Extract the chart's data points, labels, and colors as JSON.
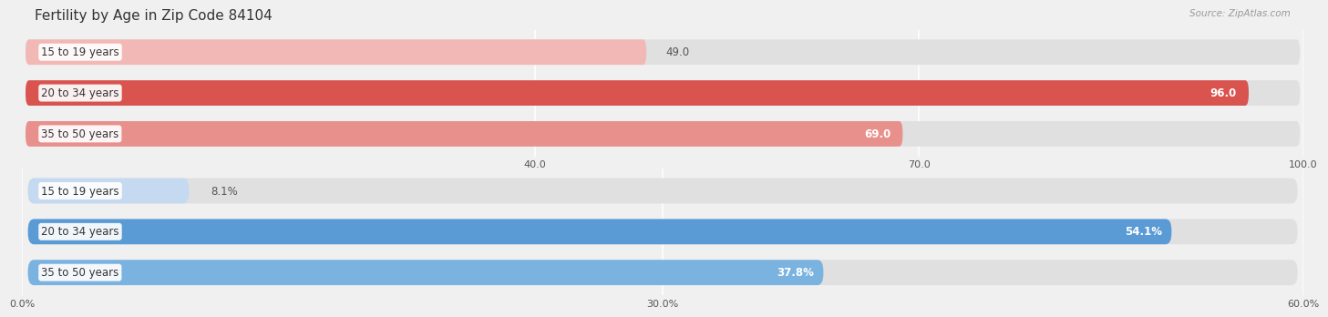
{
  "title": "Fertility by Age in Zip Code 84104",
  "source": "Source: ZipAtlas.com",
  "top_section": {
    "categories": [
      "15 to 19 years",
      "20 to 34 years",
      "35 to 50 years"
    ],
    "values": [
      49.0,
      96.0,
      69.0
    ],
    "x_max": 100.0,
    "x_ticks": [
      40.0,
      70.0,
      100.0
    ],
    "bar_colors": [
      "#f2b8b5",
      "#d9534f",
      "#e8908c"
    ]
  },
  "bottom_section": {
    "categories": [
      "15 to 19 years",
      "20 to 34 years",
      "35 to 50 years"
    ],
    "values": [
      8.1,
      54.1,
      37.8
    ],
    "x_max": 60.0,
    "x_ticks": [
      0.0,
      30.0,
      60.0
    ],
    "bar_colors": [
      "#c5daf0",
      "#5b9bd5",
      "#7ab3e0"
    ]
  },
  "bg_color": "#f0f0f0",
  "bar_bg_color": "#e0e0e0",
  "title_fontsize": 11,
  "source_fontsize": 7.5,
  "bar_label_fontsize": 8.5,
  "category_label_fontsize": 8.5
}
